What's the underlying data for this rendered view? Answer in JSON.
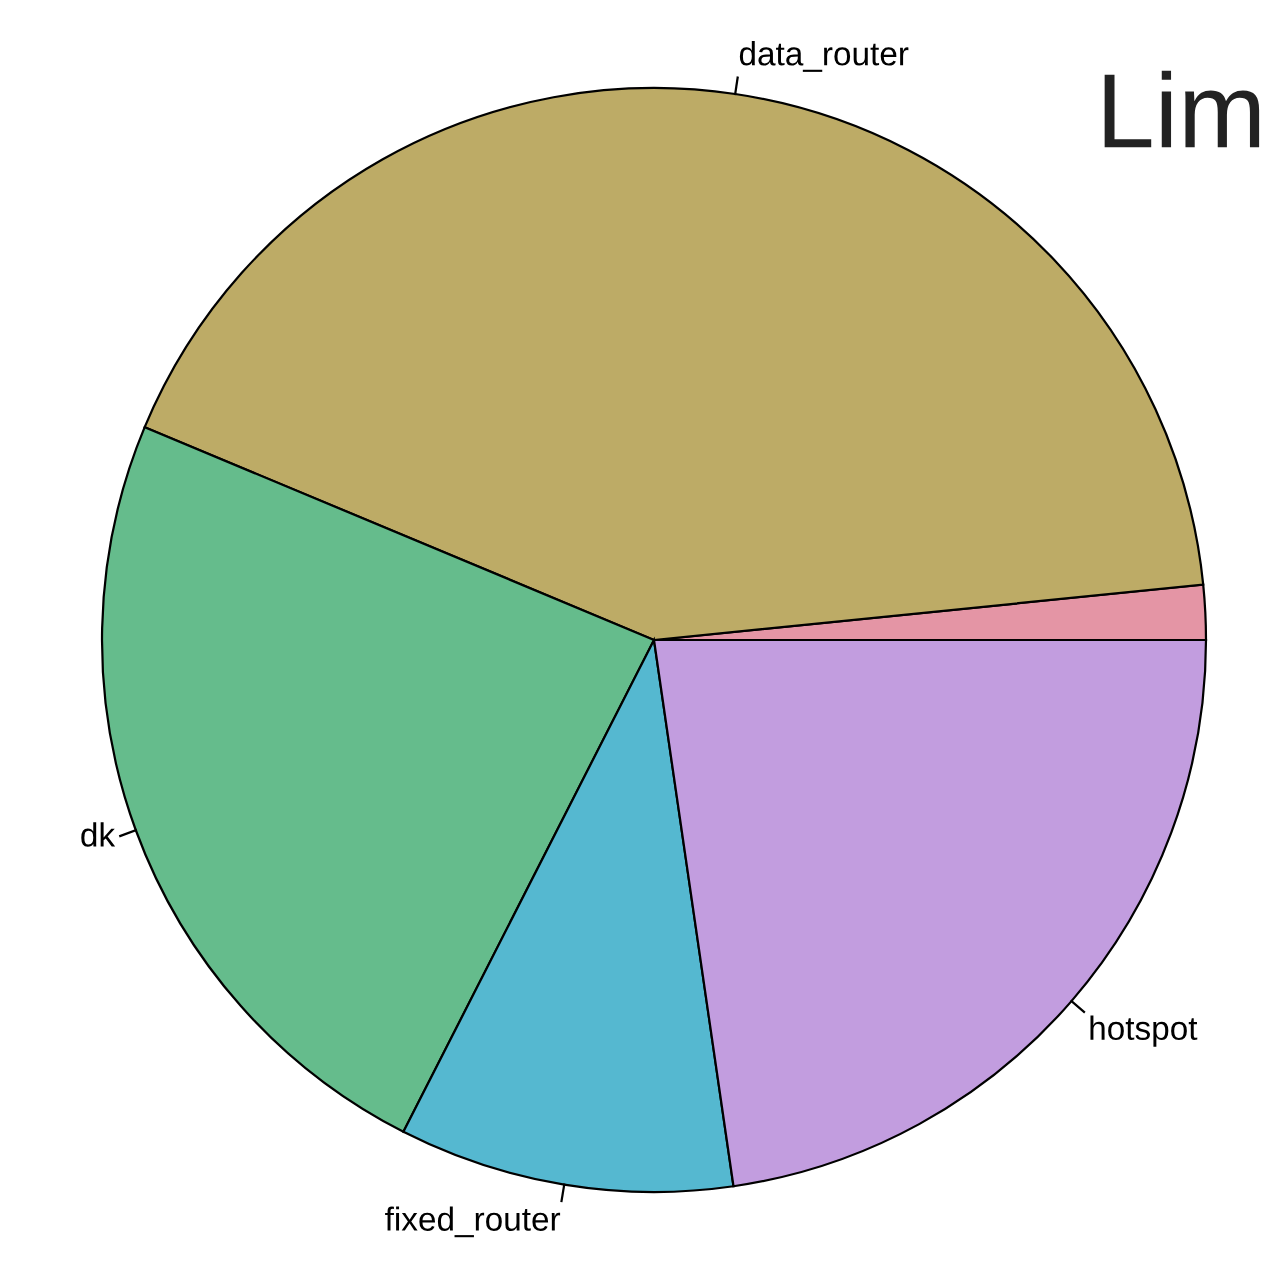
{
  "chart_data": {
    "type": "pie",
    "categories": [
      null,
      "data_router",
      "dk",
      "fixed_router",
      "hotspot"
    ],
    "values": [
      1.6,
      42.1,
      23.8,
      9.8,
      22.7
    ],
    "colors": [
      "#e495a5",
      "#bdab66",
      "#65bc8c",
      "#55b8d0",
      "#c29ddf"
    ],
    "annotations": [
      "Lim"
    ]
  }
}
